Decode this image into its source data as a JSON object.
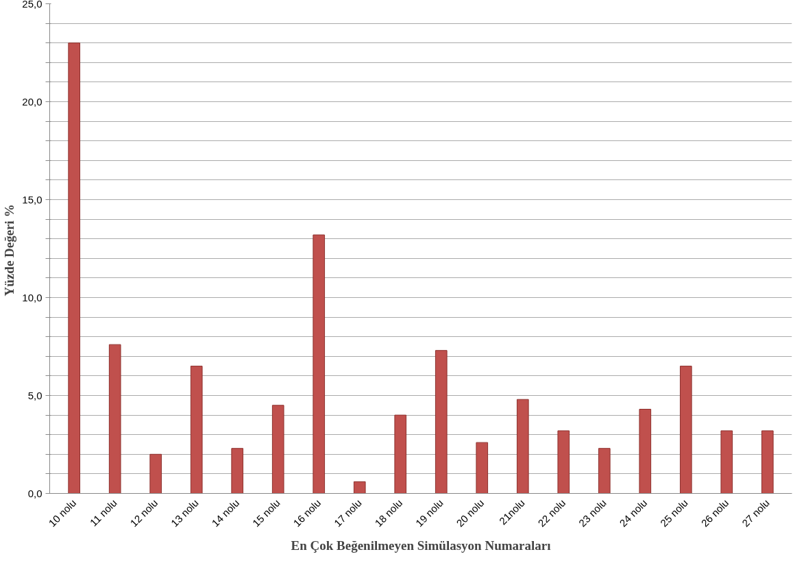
{
  "chart_data": {
    "type": "bar",
    "xlabel": "En Çok Beğenilmeyen Simülasyon Numaraları",
    "ylabel": "Yüzde  Değeri %",
    "categories": [
      "10 nolu",
      "11 nolu",
      "12 nolu",
      "13 nolu",
      "14 nolu",
      "15 nolu",
      "16 nolu",
      "17 nolu",
      "18 nolu",
      "19 nolu",
      "20 nolu",
      "21nolu",
      "22 nolu",
      "23 nolu",
      "24 nolu",
      "25 nolu",
      "26 nolu",
      "27 nolu"
    ],
    "values": [
      23.0,
      7.6,
      2.0,
      6.5,
      2.3,
      4.5,
      13.2,
      0.6,
      4.0,
      7.3,
      2.6,
      4.8,
      3.2,
      2.3,
      4.3,
      6.5,
      3.2,
      3.2
    ],
    "color": "#c0504d",
    "ylim": [
      0,
      25
    ],
    "yticks": [
      {
        "value": 0,
        "label": "0,0"
      },
      {
        "value": 1,
        "label": null
      },
      {
        "value": 2,
        "label": null
      },
      {
        "value": 3,
        "label": null
      },
      {
        "value": 4,
        "label": null
      },
      {
        "value": 5,
        "label": "5,0"
      },
      {
        "value": 6,
        "label": null
      },
      {
        "value": 7,
        "label": null
      },
      {
        "value": 8,
        "label": null
      },
      {
        "value": 9,
        "label": null
      },
      {
        "value": 10,
        "label": "10,0"
      },
      {
        "value": 11,
        "label": null
      },
      {
        "value": 12,
        "label": null
      },
      {
        "value": 13,
        "label": null
      },
      {
        "value": 14,
        "label": null
      },
      {
        "value": 15,
        "label": "15,0"
      },
      {
        "value": 16,
        "label": null
      },
      {
        "value": 17,
        "label": null
      },
      {
        "value": 18,
        "label": null
      },
      {
        "value": 19,
        "label": null
      },
      {
        "value": 20,
        "label": "20,0"
      },
      {
        "value": 21,
        "label": null
      },
      {
        "value": 22,
        "label": null
      },
      {
        "value": 23,
        "label": null
      },
      {
        "value": 24,
        "label": null
      },
      {
        "value": 25,
        "label": "25,0"
      }
    ],
    "grid": "y"
  }
}
